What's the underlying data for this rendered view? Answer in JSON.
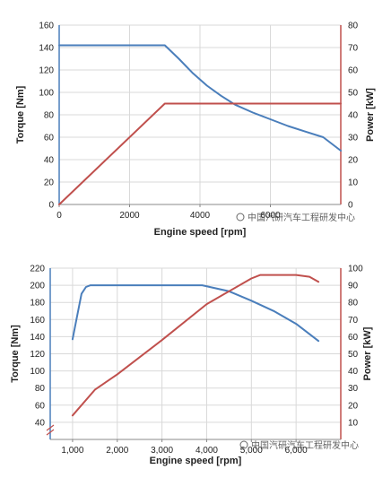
{
  "chart_data": [
    {
      "type": "line",
      "xlabel": "Engine speed [rpm]",
      "ylabel_left": "Torque [Nm]",
      "ylabel_right": "Power [kW]",
      "xlim": [
        0,
        8000
      ],
      "ylim_left": [
        0,
        160
      ],
      "ylim_right": [
        0,
        80
      ],
      "x_ticks": [
        0,
        2000,
        4000,
        6000
      ],
      "x_tick_labels": [
        "0",
        "2000",
        "4000",
        "6000"
      ],
      "y_ticks_left": [
        0,
        20,
        40,
        60,
        80,
        100,
        120,
        140,
        160
      ],
      "y_ticks_right": [
        0,
        10,
        20,
        30,
        40,
        50,
        60,
        70,
        80
      ],
      "grid": true,
      "series": [
        {
          "axis": "left",
          "color": "#4a7ebb",
          "x": [
            0,
            3000,
            3400,
            3800,
            4200,
            4600,
            5000,
            5500,
            6000,
            6500,
            7000,
            7500,
            8000
          ],
          "y": [
            142,
            142,
            130,
            117,
            106,
            97,
            89,
            82,
            76,
            70,
            65,
            60,
            48
          ]
        },
        {
          "axis": "right",
          "color": "#c0504d",
          "x": [
            0,
            3000,
            3200,
            8000
          ],
          "y": [
            0,
            45,
            45,
            45
          ]
        }
      ],
      "watermark": "中国汽研汽车工程研发中心"
    },
    {
      "type": "line",
      "xlabel": "Engine speed [rpm]",
      "ylabel_left": "Torque [Nm]",
      "ylabel_right": "Power [kW]",
      "xlim": [
        500,
        7000
      ],
      "ylim_left": [
        20,
        220
      ],
      "ylim_right": [
        0,
        100
      ],
      "x_ticks": [
        1000,
        2000,
        3000,
        4000,
        5000,
        6000
      ],
      "x_tick_labels": [
        "1,000",
        "2,000",
        "3,000",
        "4,000",
        "5,000",
        "6,000"
      ],
      "y_ticks_left": [
        40,
        60,
        80,
        100,
        120,
        140,
        160,
        180,
        200,
        220
      ],
      "y_ticks_right": [
        10,
        20,
        30,
        40,
        50,
        60,
        70,
        80,
        90,
        100
      ],
      "grid": true,
      "series": [
        {
          "axis": "left",
          "color": "#4a7ebb",
          "x": [
            1000,
            1200,
            1300,
            1400,
            2000,
            3000,
            3900,
            4500,
            5000,
            5500,
            6000,
            6500
          ],
          "y": [
            137,
            190,
            198,
            200,
            200,
            200,
            200,
            193,
            182,
            170,
            155,
            135
          ]
        },
        {
          "axis": "right",
          "color": "#c0504d",
          "x": [
            1000,
            1500,
            2000,
            3000,
            4000,
            5000,
            5200,
            6000,
            6300,
            6500
          ],
          "y": [
            14,
            29,
            38,
            58,
            79,
            94,
            96,
            96,
            95,
            92
          ]
        }
      ],
      "watermark": "中国汽研汽车工程研发中心"
    }
  ]
}
